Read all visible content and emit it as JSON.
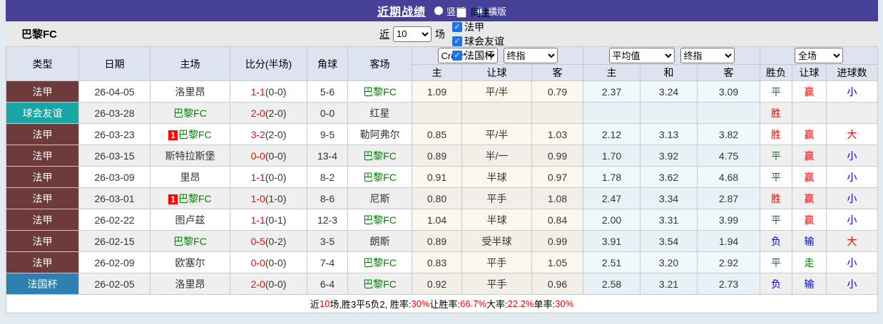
{
  "colors": {
    "titlebar_bg": "#474099",
    "accent_blue": "#1a73e8",
    "league_fa": "#6e3b3b",
    "league_friendly": "#18a5a5",
    "league_cup": "#2e80b0",
    "green": "#008000",
    "red": "#ff0000",
    "blue": "#0000ee"
  },
  "titlebar": {
    "title": "近期战绩",
    "radios": [
      {
        "label": "竖版",
        "checked": false
      },
      {
        "label": "横版",
        "checked": true
      }
    ]
  },
  "filterbar": {
    "team": "巴黎FC",
    "near_label": "近",
    "count_value": "10",
    "games_label": "场",
    "checkboxes": [
      {
        "label": "同主",
        "checked": false
      },
      {
        "label": "法甲",
        "checked": true
      },
      {
        "label": "球会友谊",
        "checked": true
      },
      {
        "label": "法国杯",
        "checked": true
      }
    ]
  },
  "table": {
    "static_headers": [
      "类型",
      "日期",
      "主场",
      "比分(半场)",
      "角球",
      "客场"
    ],
    "group_selects": {
      "g1": [
        "Crow*",
        "终指"
      ],
      "g2": [
        "平均值",
        "终指"
      ],
      "g3": [
        "全场"
      ]
    },
    "sub_headers": [
      "主",
      "让球",
      "客",
      "主",
      "和",
      "客",
      "胜负",
      "让球",
      "进球数"
    ],
    "rows": [
      {
        "league": "法甲",
        "league_type": "fa",
        "date": "26-04-05",
        "home": "洛里昂",
        "home_green": false,
        "home_mark": false,
        "score_full": "1-1",
        "score_half": "(0-0)",
        "corners": "5-6",
        "away": "巴黎FC",
        "away_green": true,
        "odds": [
          "1.09",
          "平/半",
          "0.79",
          "2.37",
          "3.24",
          "3.09"
        ],
        "results": [
          [
            "平",
            "green"
          ],
          [
            "赢",
            "red"
          ],
          [
            "小",
            "blue"
          ]
        ]
      },
      {
        "league": "球会友谊",
        "league_type": "friendly",
        "date": "26-03-28",
        "home": "巴黎FC",
        "home_green": true,
        "home_mark": false,
        "score_full": "2-0",
        "score_half": "(2-0)",
        "corners": "0-0",
        "away": "红星",
        "away_green": false,
        "odds": [
          "",
          "",
          "",
          "",
          "",
          ""
        ],
        "results": [
          [
            "胜",
            "red"
          ],
          [
            "",
            ""
          ],
          [
            "",
            ""
          ]
        ]
      },
      {
        "league": "法甲",
        "league_type": "fa",
        "date": "26-03-23",
        "home": "巴黎FC",
        "home_green": true,
        "home_mark": true,
        "score_full": "3-2",
        "score_half": "(2-0)",
        "corners": "9-5",
        "away": "勒阿弗尔",
        "away_green": false,
        "odds": [
          "0.85",
          "平/半",
          "1.03",
          "2.12",
          "3.13",
          "3.82"
        ],
        "results": [
          [
            "胜",
            "red"
          ],
          [
            "赢",
            "red"
          ],
          [
            "大",
            "red"
          ]
        ]
      },
      {
        "league": "法甲",
        "league_type": "fa",
        "date": "26-03-15",
        "home": "斯特拉斯堡",
        "home_green": false,
        "home_mark": false,
        "score_full": "0-0",
        "score_half": "(0-0)",
        "corners": "13-4",
        "away": "巴黎FC",
        "away_green": true,
        "odds": [
          "0.89",
          "半/一",
          "0.99",
          "1.70",
          "3.92",
          "4.75"
        ],
        "results": [
          [
            "平",
            "green"
          ],
          [
            "赢",
            "red"
          ],
          [
            "小",
            "blue"
          ]
        ]
      },
      {
        "league": "法甲",
        "league_type": "fa",
        "date": "26-03-09",
        "home": "里昂",
        "home_green": false,
        "home_mark": false,
        "score_full": "1-1",
        "score_half": "(0-0)",
        "corners": "8-2",
        "away": "巴黎FC",
        "away_green": true,
        "odds": [
          "0.91",
          "半球",
          "0.97",
          "1.78",
          "3.62",
          "4.68"
        ],
        "results": [
          [
            "平",
            "green"
          ],
          [
            "赢",
            "red"
          ],
          [
            "小",
            "blue"
          ]
        ]
      },
      {
        "league": "法甲",
        "league_type": "fa",
        "date": "26-03-01",
        "home": "巴黎FC",
        "home_green": true,
        "home_mark": true,
        "score_full": "1-0",
        "score_half": "(1-0)",
        "corners": "8-6",
        "away": "尼斯",
        "away_green": false,
        "odds": [
          "0.80",
          "平手",
          "1.08",
          "2.47",
          "3.34",
          "2.87"
        ],
        "results": [
          [
            "胜",
            "red"
          ],
          [
            "赢",
            "red"
          ],
          [
            "小",
            "blue"
          ]
        ]
      },
      {
        "league": "法甲",
        "league_type": "fa",
        "date": "26-02-22",
        "home": "图卢兹",
        "home_green": false,
        "home_mark": false,
        "score_full": "1-1",
        "score_half": "(0-1)",
        "corners": "12-3",
        "away": "巴黎FC",
        "away_green": true,
        "odds": [
          "1.04",
          "半球",
          "0.84",
          "2.00",
          "3.31",
          "3.99"
        ],
        "results": [
          [
            "平",
            "green"
          ],
          [
            "赢",
            "red"
          ],
          [
            "小",
            "blue"
          ]
        ]
      },
      {
        "league": "法甲",
        "league_type": "fa",
        "date": "26-02-15",
        "home": "巴黎FC",
        "home_green": true,
        "home_mark": false,
        "score_full": "0-5",
        "score_half": "(0-2)",
        "corners": "3-5",
        "away": "朗斯",
        "away_green": false,
        "odds": [
          "0.89",
          "受半球",
          "0.99",
          "3.91",
          "3.54",
          "1.94"
        ],
        "results": [
          [
            "负",
            "blue"
          ],
          [
            "输",
            "blue"
          ],
          [
            "大",
            "red"
          ]
        ]
      },
      {
        "league": "法甲",
        "league_type": "fa",
        "date": "26-02-09",
        "home": "欧塞尔",
        "home_green": false,
        "home_mark": false,
        "score_full": "0-0",
        "score_half": "(0-0)",
        "corners": "7-4",
        "away": "巴黎FC",
        "away_green": true,
        "odds": [
          "0.83",
          "平手",
          "1.05",
          "2.51",
          "3.20",
          "2.92"
        ],
        "results": [
          [
            "平",
            "green"
          ],
          [
            "走",
            "green"
          ],
          [
            "小",
            "blue"
          ]
        ]
      },
      {
        "league": "法国杯",
        "league_type": "cup",
        "date": "26-02-05",
        "home": "洛里昂",
        "home_green": false,
        "home_mark": false,
        "score_full": "2-0",
        "score_half": "(0-0)",
        "corners": "6-4",
        "away": "巴黎FC",
        "away_green": true,
        "odds": [
          "0.92",
          "平手",
          "0.96",
          "2.58",
          "3.21",
          "2.73"
        ],
        "results": [
          [
            "负",
            "blue"
          ],
          [
            "输",
            "blue"
          ],
          [
            "小",
            "blue"
          ]
        ]
      }
    ]
  },
  "footer": {
    "segments": [
      {
        "text": "近",
        "red": false
      },
      {
        "text": "10",
        "red": true
      },
      {
        "text": "场,胜3平5负2, 胜率:",
        "red": false
      },
      {
        "text": "30%",
        "red": true
      },
      {
        "text": " 让胜率:",
        "red": false
      },
      {
        "text": "66.7%",
        "red": true
      },
      {
        "text": " 大率:",
        "red": false
      },
      {
        "text": "22.2%",
        "red": true
      },
      {
        "text": " 单率:",
        "red": false
      },
      {
        "text": "30%",
        "red": true
      }
    ]
  }
}
